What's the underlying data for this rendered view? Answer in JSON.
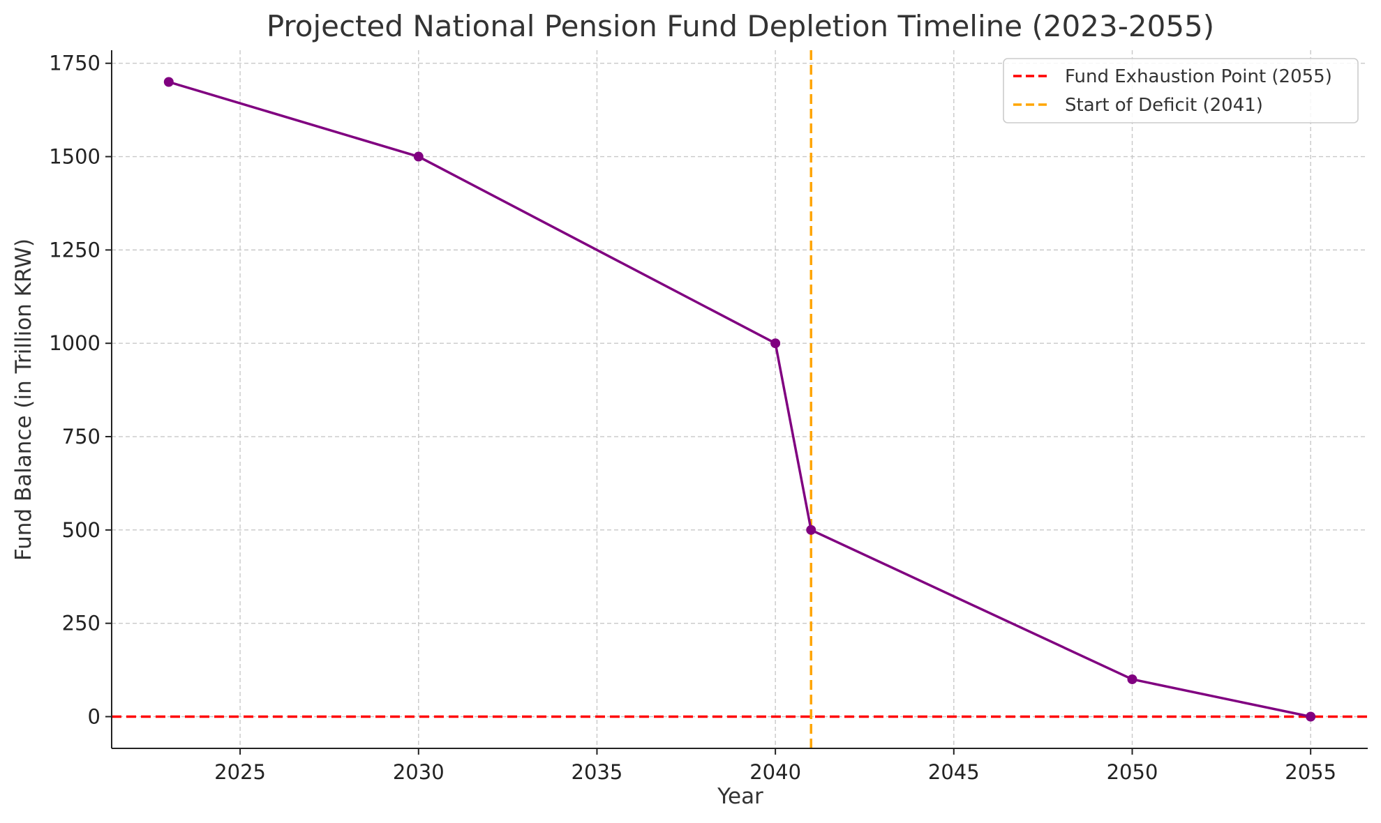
{
  "colors": {
    "series": "#800080",
    "exhaustion_line": "#ff0000",
    "deficit_line": "#ffa500",
    "grid": "#c8c8c8",
    "axis": "#222222",
    "text": "#333333"
  },
  "chart_data": {
    "type": "line",
    "title": "Projected National Pension Fund Depletion Timeline (2023-2055)",
    "xlabel": "Year",
    "ylabel": "Fund Balance (in Trillion KRW)",
    "xlim": [
      2021.4,
      2056.6
    ],
    "ylim": [
      -85,
      1785
    ],
    "x_ticks": [
      2025,
      2030,
      2035,
      2040,
      2045,
      2050,
      2055
    ],
    "y_ticks": [
      0,
      250,
      500,
      750,
      1000,
      1250,
      1500,
      1750
    ],
    "grid": true,
    "legend_position": "top-right",
    "series": [
      {
        "x": [
          2023,
          2030,
          2040,
          2041,
          2050,
          2055
        ],
        "values": [
          1700,
          1500,
          1000,
          500,
          100,
          0
        ],
        "marker": "circle"
      }
    ],
    "reference_lines": [
      {
        "orientation": "horizontal",
        "value": 0,
        "label": "Fund Exhaustion Point (2055)",
        "color_key": "exhaustion_line",
        "style": "dashed"
      },
      {
        "orientation": "vertical",
        "value": 2041,
        "label": "Start of Deficit (2041)",
        "color_key": "deficit_line",
        "style": "dashed"
      }
    ]
  }
}
